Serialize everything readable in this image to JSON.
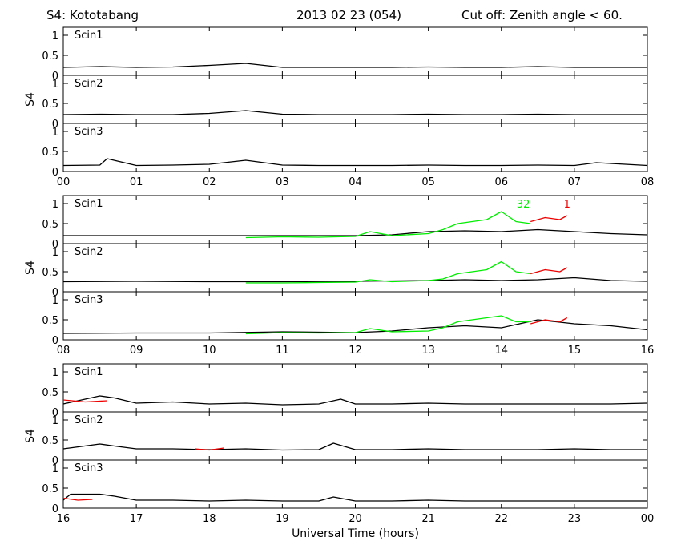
{
  "header": {
    "station": "S4: Kototabang",
    "date": "2013 02 23 (054)",
    "cutoff": "Cut off: Zenith angle < 60."
  },
  "chart_data": {
    "type": "line",
    "ylabel": "S4",
    "xlabel": "Universal Time (hours)",
    "ylim": [
      0,
      1.2
    ],
    "yticks": [
      0,
      0.5,
      1
    ],
    "ytick_labels": [
      "0",
      "0.5",
      "1"
    ],
    "colors": {
      "background": "#000000",
      "prn32": "#00ee00",
      "prn1": "#ee0000"
    },
    "groups": [
      {
        "x_range": [
          0,
          8
        ],
        "x_tick_labels": [
          "00",
          "01",
          "02",
          "03",
          "04",
          "05",
          "06",
          "07",
          "08"
        ],
        "panels": [
          {
            "label": "Scin1",
            "satellite_labels": [],
            "series": [
              {
                "x": [
                  0,
                  0.5,
                  1,
                  1.5,
                  2,
                  2.5,
                  3,
                  3.5,
                  4,
                  4.5,
                  5,
                  5.5,
                  6,
                  6.5,
                  7,
                  7.5,
                  8
                ],
                "y": [
                  0.2,
                  0.22,
                  0.2,
                  0.21,
                  0.25,
                  0.3,
                  0.2,
                  0.2,
                  0.2,
                  0.2,
                  0.21,
                  0.2,
                  0.2,
                  0.22,
                  0.2,
                  0.2,
                  0.2
                ]
              }
            ]
          },
          {
            "label": "Scin2",
            "satellite_labels": [],
            "series": [
              {
                "x": [
                  0,
                  0.5,
                  1,
                  1.5,
                  2,
                  2.5,
                  3,
                  3.5,
                  4,
                  4.5,
                  5,
                  5.5,
                  6,
                  6.5,
                  7,
                  7.5,
                  8
                ],
                "y": [
                  0.22,
                  0.23,
                  0.22,
                  0.22,
                  0.25,
                  0.32,
                  0.23,
                  0.22,
                  0.22,
                  0.22,
                  0.23,
                  0.22,
                  0.22,
                  0.23,
                  0.22,
                  0.22,
                  0.22
                ]
              }
            ]
          },
          {
            "label": "Scin3",
            "satellite_labels": [],
            "series": [
              {
                "x": [
                  0,
                  0.5,
                  0.6,
                  1,
                  1.5,
                  2,
                  2.5,
                  3,
                  3.5,
                  4,
                  4.5,
                  5,
                  5.5,
                  6,
                  6.5,
                  7,
                  7.3,
                  8
                ],
                "y": [
                  0.15,
                  0.16,
                  0.32,
                  0.15,
                  0.16,
                  0.18,
                  0.28,
                  0.16,
                  0.15,
                  0.15,
                  0.15,
                  0.16,
                  0.15,
                  0.15,
                  0.16,
                  0.15,
                  0.22,
                  0.15
                ]
              }
            ]
          }
        ]
      },
      {
        "x_range": [
          8,
          16
        ],
        "x_tick_labels": [
          "08",
          "09",
          "10",
          "11",
          "12",
          "13",
          "14",
          "15",
          "16"
        ],
        "panels": [
          {
            "label": "Scin1",
            "satellite_labels": [
              {
                "text": "32",
                "x": 14.3,
                "y": 0.9,
                "color": "#00ee00"
              },
              {
                "text": "1",
                "x": 14.9,
                "y": 0.9,
                "color": "#ee0000"
              }
            ],
            "series": [
              {
                "x": [
                  8,
                  9,
                  10,
                  11,
                  12,
                  12.5,
                  13,
                  13.5,
                  14,
                  14.5,
                  15,
                  15.5,
                  16
                ],
                "y": [
                  0.2,
                  0.2,
                  0.2,
                  0.2,
                  0.2,
                  0.22,
                  0.3,
                  0.32,
                  0.3,
                  0.35,
                  0.3,
                  0.25,
                  0.22
                ]
              },
              {
                "x": [
                  10.5,
                  11,
                  11.5,
                  12,
                  12.2,
                  12.5,
                  13,
                  13.2,
                  13.4,
                  13.6,
                  13.8,
                  14,
                  14.2,
                  14.4
                ],
                "y": [
                  0.15,
                  0.17,
                  0.16,
                  0.18,
                  0.3,
                  0.2,
                  0.25,
                  0.35,
                  0.5,
                  0.55,
                  0.6,
                  0.8,
                  0.55,
                  0.5
                ],
                "color": "#00ee00"
              },
              {
                "x": [
                  14.4,
                  14.6,
                  14.8,
                  14.9
                ],
                "y": [
                  0.55,
                  0.65,
                  0.6,
                  0.7
                ],
                "color": "#ee0000"
              }
            ]
          },
          {
            "label": "Scin2",
            "satellite_labels": [],
            "series": [
              {
                "x": [
                  8,
                  9,
                  10,
                  11,
                  12,
                  12.5,
                  13,
                  13.5,
                  14,
                  14.5,
                  15,
                  15.5,
                  16
                ],
                "y": [
                  0.25,
                  0.26,
                  0.25,
                  0.25,
                  0.26,
                  0.27,
                  0.28,
                  0.3,
                  0.28,
                  0.3,
                  0.35,
                  0.28,
                  0.26
                ]
              },
              {
                "x": [
                  10.5,
                  11,
                  11.5,
                  12,
                  12.2,
                  12.5,
                  13,
                  13.2,
                  13.4,
                  13.6,
                  13.8,
                  14,
                  14.2,
                  14.4
                ],
                "y": [
                  0.22,
                  0.22,
                  0.23,
                  0.24,
                  0.3,
                  0.25,
                  0.28,
                  0.32,
                  0.45,
                  0.5,
                  0.55,
                  0.75,
                  0.5,
                  0.45
                ],
                "color": "#00ee00"
              },
              {
                "x": [
                  14.4,
                  14.6,
                  14.8,
                  14.9
                ],
                "y": [
                  0.45,
                  0.55,
                  0.5,
                  0.6
                ],
                "color": "#ee0000"
              }
            ]
          },
          {
            "label": "Scin3",
            "satellite_labels": [],
            "series": [
              {
                "x": [
                  8,
                  9,
                  10,
                  11,
                  12,
                  12.5,
                  13,
                  13.5,
                  14,
                  14.5,
                  15,
                  15.5,
                  16
                ],
                "y": [
                  0.16,
                  0.17,
                  0.17,
                  0.2,
                  0.18,
                  0.22,
                  0.3,
                  0.35,
                  0.3,
                  0.5,
                  0.4,
                  0.35,
                  0.25
                ]
              },
              {
                "x": [
                  10.5,
                  11,
                  11.5,
                  12,
                  12.2,
                  12.5,
                  13,
                  13.2,
                  13.4,
                  13.6,
                  13.8,
                  14,
                  14.2,
                  14.4
                ],
                "y": [
                  0.15,
                  0.18,
                  0.17,
                  0.18,
                  0.28,
                  0.2,
                  0.22,
                  0.3,
                  0.45,
                  0.5,
                  0.55,
                  0.6,
                  0.45,
                  0.45
                ],
                "color": "#00ee00"
              },
              {
                "x": [
                  14.4,
                  14.6,
                  14.8,
                  14.9
                ],
                "y": [
                  0.4,
                  0.5,
                  0.45,
                  0.55
                ],
                "color": "#ee0000"
              }
            ]
          }
        ]
      },
      {
        "x_range": [
          16,
          24
        ],
        "x_tick_labels": [
          "16",
          "17",
          "18",
          "19",
          "20",
          "21",
          "22",
          "23",
          "00"
        ],
        "panels": [
          {
            "label": "Scin1",
            "satellite_labels": [],
            "series": [
              {
                "x": [
                  16,
                  16.5,
                  16.7,
                  17,
                  17.5,
                  18,
                  18.5,
                  19,
                  19.5,
                  19.8,
                  20,
                  20.5,
                  21,
                  21.5,
                  22,
                  22.5,
                  23,
                  23.5,
                  24
                ],
                "y": [
                  0.2,
                  0.4,
                  0.35,
                  0.22,
                  0.25,
                  0.2,
                  0.22,
                  0.18,
                  0.2,
                  0.32,
                  0.2,
                  0.2,
                  0.22,
                  0.2,
                  0.2,
                  0.2,
                  0.2,
                  0.2,
                  0.22
                ]
              },
              {
                "x": [
                  16,
                  16.3,
                  16.6
                ],
                "y": [
                  0.3,
                  0.25,
                  0.28
                ],
                "color": "#ee0000"
              }
            ]
          },
          {
            "label": "Scin2",
            "satellite_labels": [],
            "series": [
              {
                "x": [
                  16,
                  16.5,
                  16.7,
                  17,
                  17.5,
                  18,
                  18.5,
                  19,
                  19.5,
                  19.7,
                  20,
                  20.5,
                  21,
                  21.5,
                  22,
                  22.5,
                  23,
                  23.5,
                  24
                ],
                "y": [
                  0.28,
                  0.4,
                  0.35,
                  0.28,
                  0.28,
                  0.26,
                  0.28,
                  0.25,
                  0.26,
                  0.42,
                  0.26,
                  0.26,
                  0.28,
                  0.26,
                  0.26,
                  0.26,
                  0.28,
                  0.26,
                  0.26
                ]
              },
              {
                "x": [
                  17.8,
                  18.0,
                  18.2
                ],
                "y": [
                  0.28,
                  0.25,
                  0.3
                ],
                "color": "#ee0000"
              }
            ]
          },
          {
            "label": "Scin3",
            "satellite_labels": [],
            "series": [
              {
                "x": [
                  16,
                  16.1,
                  16.5,
                  16.7,
                  17,
                  17.5,
                  18,
                  18.5,
                  19,
                  19.5,
                  19.7,
                  20,
                  20.5,
                  21,
                  21.5,
                  22,
                  22.5,
                  23,
                  23.5,
                  24
                ],
                "y": [
                  0.2,
                  0.35,
                  0.35,
                  0.3,
                  0.2,
                  0.2,
                  0.18,
                  0.2,
                  0.18,
                  0.18,
                  0.28,
                  0.18,
                  0.18,
                  0.2,
                  0.18,
                  0.18,
                  0.18,
                  0.18,
                  0.18,
                  0.18
                ]
              },
              {
                "x": [
                  16.0,
                  16.2,
                  16.4
                ],
                "y": [
                  0.25,
                  0.2,
                  0.22
                ],
                "color": "#ee0000"
              }
            ]
          }
        ]
      }
    ]
  }
}
